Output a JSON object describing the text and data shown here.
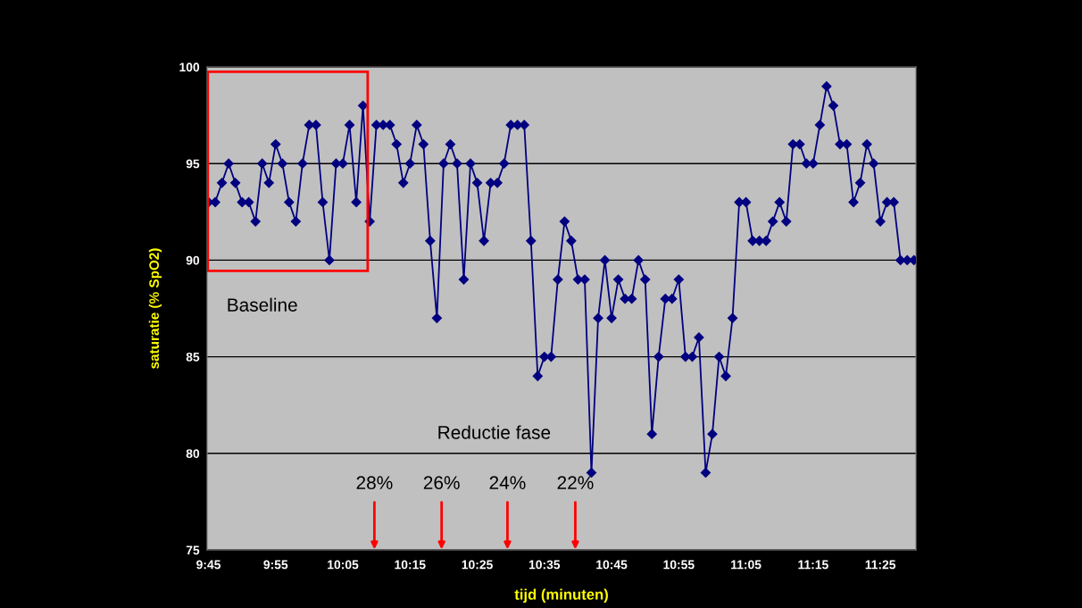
{
  "chart_data": {
    "type": "line",
    "xlabel": "tijd (minuten)",
    "ylabel": "saturatie (% SpO2)",
    "categories": [
      "9:45",
      null,
      null,
      null,
      null,
      null,
      null,
      null,
      null,
      null,
      "9:55",
      null,
      null,
      null,
      null,
      null,
      null,
      null,
      null,
      null,
      "10:05",
      null,
      null,
      null,
      null,
      null,
      null,
      null,
      null,
      null,
      "10:15",
      null,
      null,
      null,
      null,
      null,
      null,
      null,
      null,
      null,
      "10:25",
      null,
      null,
      null,
      null,
      null,
      null,
      null,
      null,
      null,
      "10:35",
      null,
      null,
      null,
      null,
      null,
      null,
      null,
      null,
      null,
      "10:45",
      null,
      null,
      null,
      null,
      null,
      null,
      null,
      null,
      null,
      "10:55",
      null,
      null,
      null,
      null,
      null,
      null,
      null,
      null,
      null,
      "11:05",
      null,
      null,
      null,
      null,
      null,
      null,
      null,
      null,
      null,
      "11:15",
      null,
      null,
      null,
      null,
      null,
      null,
      null,
      null,
      null,
      "11:25",
      null,
      null,
      null,
      null,
      null
    ],
    "series": [
      {
        "color": "#000080",
        "values": [
          93,
          93,
          94,
          95,
          94,
          93,
          93,
          92,
          95,
          94,
          96,
          95,
          93,
          92,
          95,
          97,
          97,
          93,
          90,
          95,
          95,
          97,
          93,
          98,
          92,
          97,
          97,
          97,
          96,
          94,
          95,
          97,
          96,
          91,
          87,
          95,
          96,
          95,
          89,
          95,
          94,
          91,
          94,
          94,
          95,
          97,
          97,
          97,
          91,
          84,
          85,
          85,
          89,
          92,
          91,
          89,
          89,
          79,
          87,
          90,
          87,
          89,
          88,
          88,
          90,
          89,
          81,
          85,
          88,
          88,
          89,
          85,
          85,
          86,
          79,
          81,
          85,
          84,
          87,
          93,
          93,
          91,
          91,
          91,
          92,
          93,
          92,
          96,
          96,
          95,
          95,
          97,
          99,
          98,
          96,
          96,
          93,
          94,
          96,
          95,
          92,
          93,
          93,
          90,
          90,
          90
        ]
      }
    ],
    "ylim": [
      75,
      100
    ],
    "yticks": [
      75,
      80,
      85,
      90,
      95,
      100
    ],
    "grid": "y",
    "marker": "diamond",
    "line_style": "solid",
    "annotations": [
      "Baseline",
      "Reductie fase",
      "28%",
      "26%",
      "24%",
      "22%"
    ]
  }
}
